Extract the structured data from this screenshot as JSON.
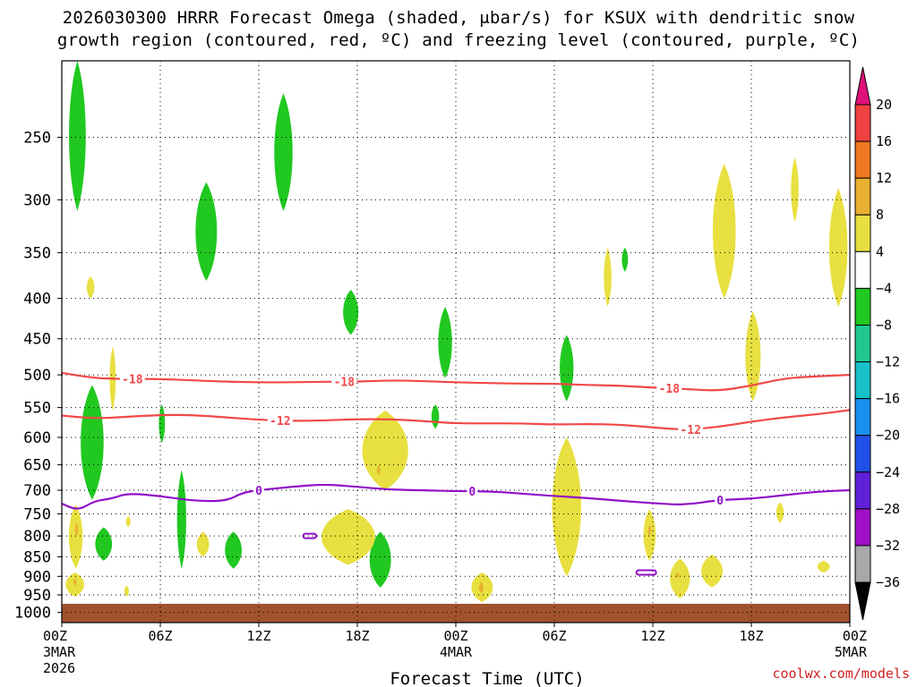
{
  "title_line1": "2026030300 HRRR Forecast Omega (shaded, μbar/s) for KSUX with dendritic snow",
  "title_line2": "growth region (contoured, red, ºC) and freezing level (contoured, purple, ºC)",
  "credit": "coolwx.com/models",
  "chart_data": {
    "type": "contour",
    "xlabel": "Forecast Time (UTC)",
    "x_ticks": [
      {
        "label": "00Z",
        "sub": [
          "3MAR",
          "2026"
        ],
        "hour": 0
      },
      {
        "label": "06Z",
        "sub": [],
        "hour": 6
      },
      {
        "label": "12Z",
        "sub": [],
        "hour": 12
      },
      {
        "label": "18Z",
        "sub": [],
        "hour": 18
      },
      {
        "label": "00Z",
        "sub": [
          "4MAR"
        ],
        "hour": 24
      },
      {
        "label": "06Z",
        "sub": [],
        "hour": 30
      },
      {
        "label": "12Z",
        "sub": [],
        "hour": 36
      },
      {
        "label": "18Z",
        "sub": [],
        "hour": 42
      },
      {
        "label": "00Z",
        "sub": [
          "5MAR"
        ],
        "hour": 48
      }
    ],
    "xlim": [
      0,
      48
    ],
    "ylabel": "",
    "y_scale": "log-pressure (inverted)",
    "ylim": [
      1030,
      200
    ],
    "y_ticks": [
      250,
      300,
      350,
      400,
      450,
      500,
      550,
      600,
      650,
      700,
      750,
      800,
      850,
      900,
      950,
      1000
    ],
    "grid": true,
    "colorbar": {
      "labels": [
        20,
        16,
        12,
        8,
        4,
        -4,
        -8,
        -12,
        -16,
        -20,
        -24,
        -28,
        -32,
        -36
      ],
      "colors": [
        "#f04040",
        "#f07820",
        "#e8b030",
        "#e8e040",
        "#ffffff",
        "#20c820",
        "#20c890",
        "#18c0c8",
        "#1890f0",
        "#2050e8",
        "#6020d8",
        "#a010c8",
        "#a8a8a8"
      ],
      "top_color": "#e0107a",
      "bottom_color": "#000000"
    },
    "contours": [
      {
        "name": "-18",
        "color": "#f04848",
        "points": [
          [
            0,
            497
          ],
          [
            2,
            505
          ],
          [
            4,
            506
          ],
          [
            6,
            506
          ],
          [
            8,
            508
          ],
          [
            10,
            510
          ],
          [
            12,
            511
          ],
          [
            14,
            511
          ],
          [
            16,
            510
          ],
          [
            18,
            510
          ],
          [
            20,
            508
          ],
          [
            22,
            509
          ],
          [
            24,
            511
          ],
          [
            26,
            512
          ],
          [
            28,
            513
          ],
          [
            30,
            513
          ],
          [
            32,
            515
          ],
          [
            34,
            516
          ],
          [
            36,
            519
          ],
          [
            38,
            521
          ],
          [
            40,
            524
          ],
          [
            42,
            516
          ],
          [
            44,
            505
          ],
          [
            46,
            502
          ],
          [
            48,
            500
          ]
        ],
        "labels": [
          {
            "x": 4.3,
            "text": "-18"
          },
          {
            "x": 17.2,
            "text": "-18"
          },
          {
            "x": 37.0,
            "text": "-18"
          }
        ]
      },
      {
        "name": "-12",
        "color": "#f04848",
        "points": [
          [
            0,
            563
          ],
          [
            2,
            568
          ],
          [
            4,
            565
          ],
          [
            6,
            562
          ],
          [
            8,
            562
          ],
          [
            10,
            566
          ],
          [
            12,
            570
          ],
          [
            14,
            572
          ],
          [
            16,
            571
          ],
          [
            18,
            569
          ],
          [
            20,
            569
          ],
          [
            22,
            572
          ],
          [
            24,
            576
          ],
          [
            26,
            576
          ],
          [
            28,
            576
          ],
          [
            30,
            578
          ],
          [
            32,
            577
          ],
          [
            34,
            578
          ],
          [
            36,
            583
          ],
          [
            38,
            587
          ],
          [
            40,
            582
          ],
          [
            42,
            573
          ],
          [
            44,
            566
          ],
          [
            46,
            561
          ],
          [
            48,
            554
          ]
        ],
        "labels": [
          {
            "x": 13.3,
            "text": "-12"
          },
          {
            "x": 38.3,
            "text": "-12"
          }
        ]
      },
      {
        "name": "0",
        "color": "#9010c8",
        "points": [
          [
            0,
            728
          ],
          [
            1,
            743
          ],
          [
            2,
            722
          ],
          [
            3,
            718
          ],
          [
            4,
            706
          ],
          [
            6,
            712
          ],
          [
            8,
            722
          ],
          [
            10,
            723
          ],
          [
            11,
            705
          ],
          [
            12,
            700
          ],
          [
            14,
            693
          ],
          [
            16,
            688
          ],
          [
            18,
            693
          ],
          [
            20,
            699
          ],
          [
            22,
            700
          ],
          [
            24,
            702
          ],
          [
            26,
            702
          ],
          [
            28,
            707
          ],
          [
            30,
            712
          ],
          [
            32,
            716
          ],
          [
            34,
            722
          ],
          [
            36,
            727
          ],
          [
            38,
            731
          ],
          [
            40,
            720
          ],
          [
            42,
            718
          ],
          [
            44,
            710
          ],
          [
            46,
            703
          ],
          [
            48,
            700
          ]
        ],
        "labels": [
          {
            "x": 12.0,
            "text": "0"
          },
          {
            "x": 25.0,
            "text": "0"
          },
          {
            "x": 40.1,
            "text": "0"
          }
        ]
      }
    ],
    "shaded_regions": [
      {
        "level": -8,
        "color": "#20c820",
        "x": [
          0.4,
          1.5
        ],
        "p": [
          200,
          310
        ]
      },
      {
        "level": -8,
        "color": "#20c820",
        "x": [
          8.1,
          9.5
        ],
        "p": [
          285,
          380
        ]
      },
      {
        "level": -8,
        "color": "#20c820",
        "x": [
          12.9,
          14.1
        ],
        "p": [
          220,
          310
        ]
      },
      {
        "level": -8,
        "color": "#20c820",
        "x": [
          17.1,
          18.1
        ],
        "p": [
          390,
          445
        ]
      },
      {
        "level": -8,
        "color": "#20c820",
        "x": [
          22.9,
          23.8
        ],
        "p": [
          410,
          505
        ]
      },
      {
        "level": -8,
        "color": "#20c820",
        "x": [
          30.3,
          31.2
        ],
        "p": [
          445,
          540
        ]
      },
      {
        "level": -8,
        "color": "#20c820",
        "x": [
          1.1,
          2.6
        ],
        "p": [
          515,
          720
        ]
      },
      {
        "level": -8,
        "color": "#20c820",
        "x": [
          5.9,
          6.3
        ],
        "p": [
          545,
          610
        ]
      },
      {
        "level": -8,
        "color": "#20c820",
        "x": [
          7.0,
          7.6
        ],
        "p": [
          660,
          880
        ]
      },
      {
        "level": -8,
        "color": "#20c820",
        "x": [
          2.0,
          3.1
        ],
        "p": [
          780,
          860
        ]
      },
      {
        "level": -8,
        "color": "#20c820",
        "x": [
          9.9,
          11.0
        ],
        "p": [
          790,
          880
        ]
      },
      {
        "level": -8,
        "color": "#20c820",
        "x": [
          18.7,
          20.1
        ],
        "p": [
          790,
          930
        ]
      },
      {
        "level": -8,
        "color": "#20c820",
        "x": [
          34.1,
          34.5
        ],
        "p": [
          345,
          370
        ]
      },
      {
        "level": -8,
        "color": "#20c820",
        "x": [
          22.5,
          23.0
        ],
        "p": [
          545,
          585
        ]
      },
      {
        "level": 4,
        "color": "#e8e040",
        "x": [
          1.5,
          2.0
        ],
        "p": [
          375,
          400
        ]
      },
      {
        "level": 4,
        "color": "#e8e040",
        "x": [
          2.9,
          3.3
        ],
        "p": [
          460,
          555
        ]
      },
      {
        "level": 4,
        "color": "#e8e040",
        "x": [
          18.2,
          21.2
        ],
        "p": [
          555,
          700
        ]
      },
      {
        "level": 4,
        "color": "#e8e040",
        "x": [
          15.7,
          19.2
        ],
        "p": [
          740,
          870
        ]
      },
      {
        "level": 4,
        "color": "#e8e040",
        "x": [
          29.8,
          31.7
        ],
        "p": [
          600,
          900
        ]
      },
      {
        "level": 4,
        "color": "#e8e040",
        "x": [
          0.4,
          1.3
        ],
        "p": [
          730,
          880
        ]
      },
      {
        "level": 4,
        "color": "#e8e040",
        "x": [
          0.2,
          1.4
        ],
        "p": [
          890,
          955
        ]
      },
      {
        "level": 4,
        "color": "#e8e040",
        "x": [
          8.2,
          9.0
        ],
        "p": [
          790,
          850
        ]
      },
      {
        "level": 4,
        "color": "#e8e040",
        "x": [
          3.9,
          4.2
        ],
        "p": [
          755,
          780
        ]
      },
      {
        "level": 4,
        "color": "#e8e040",
        "x": [
          3.8,
          4.1
        ],
        "p": [
          925,
          955
        ]
      },
      {
        "level": 4,
        "color": "#e8e040",
        "x": [
          24.9,
          26.3
        ],
        "p": [
          890,
          970
        ]
      },
      {
        "level": 4,
        "color": "#e8e040",
        "x": [
          39.6,
          41.1
        ],
        "p": [
          270,
          400
        ]
      },
      {
        "level": 4,
        "color": "#e8e040",
        "x": [
          44.4,
          44.9
        ],
        "p": [
          265,
          320
        ]
      },
      {
        "level": 4,
        "color": "#e8e040",
        "x": [
          46.7,
          47.9
        ],
        "p": [
          290,
          410
        ]
      },
      {
        "level": 4,
        "color": "#e8e040",
        "x": [
          33.0,
          33.5
        ],
        "p": [
          345,
          410
        ]
      },
      {
        "level": 4,
        "color": "#e8e040",
        "x": [
          41.6,
          42.6
        ],
        "p": [
          415,
          540
        ]
      },
      {
        "level": 4,
        "color": "#e8e040",
        "x": [
          35.4,
          36.2
        ],
        "p": [
          740,
          860
        ]
      },
      {
        "level": 4,
        "color": "#e8e040",
        "x": [
          37.0,
          38.3
        ],
        "p": [
          855,
          960
        ]
      },
      {
        "level": 4,
        "color": "#e8e040",
        "x": [
          38.9,
          40.3
        ],
        "p": [
          845,
          930
        ]
      },
      {
        "level": 4,
        "color": "#e8e040",
        "x": [
          43.5,
          44.0
        ],
        "p": [
          725,
          770
        ]
      },
      {
        "level": 4,
        "color": "#e8e040",
        "x": [
          46.0,
          46.8
        ],
        "p": [
          860,
          890
        ]
      },
      {
        "level": 8,
        "color": "#e8b030",
        "x": [
          0.8,
          1.0
        ],
        "p": [
          770,
          800
        ]
      },
      {
        "level": 8,
        "color": "#e8b030",
        "x": [
          0.7,
          0.9
        ],
        "p": [
          905,
          925
        ]
      },
      {
        "level": 8,
        "color": "#e8b030",
        "x": [
          25.4,
          25.7
        ],
        "p": [
          915,
          945
        ]
      },
      {
        "level": 8,
        "color": "#e8b030",
        "x": [
          19.2,
          19.4
        ],
        "p": [
          650,
          670
        ]
      },
      {
        "level": 8,
        "color": "#e8b030",
        "x": [
          35.7,
          35.9
        ],
        "p": [
          775,
          800
        ]
      },
      {
        "level": 8,
        "color": "#e8b030",
        "x": [
          37.4,
          37.6
        ],
        "p": [
          890,
          905
        ]
      }
    ],
    "freezing_level_blips": [
      {
        "x": [
          14.7,
          15.5
        ],
        "p": 800
      },
      {
        "x": [
          35.0,
          36.2
        ],
        "p": 890
      }
    ],
    "terrain": {
      "color": "#a0522d",
      "surface_p": 975
    }
  }
}
